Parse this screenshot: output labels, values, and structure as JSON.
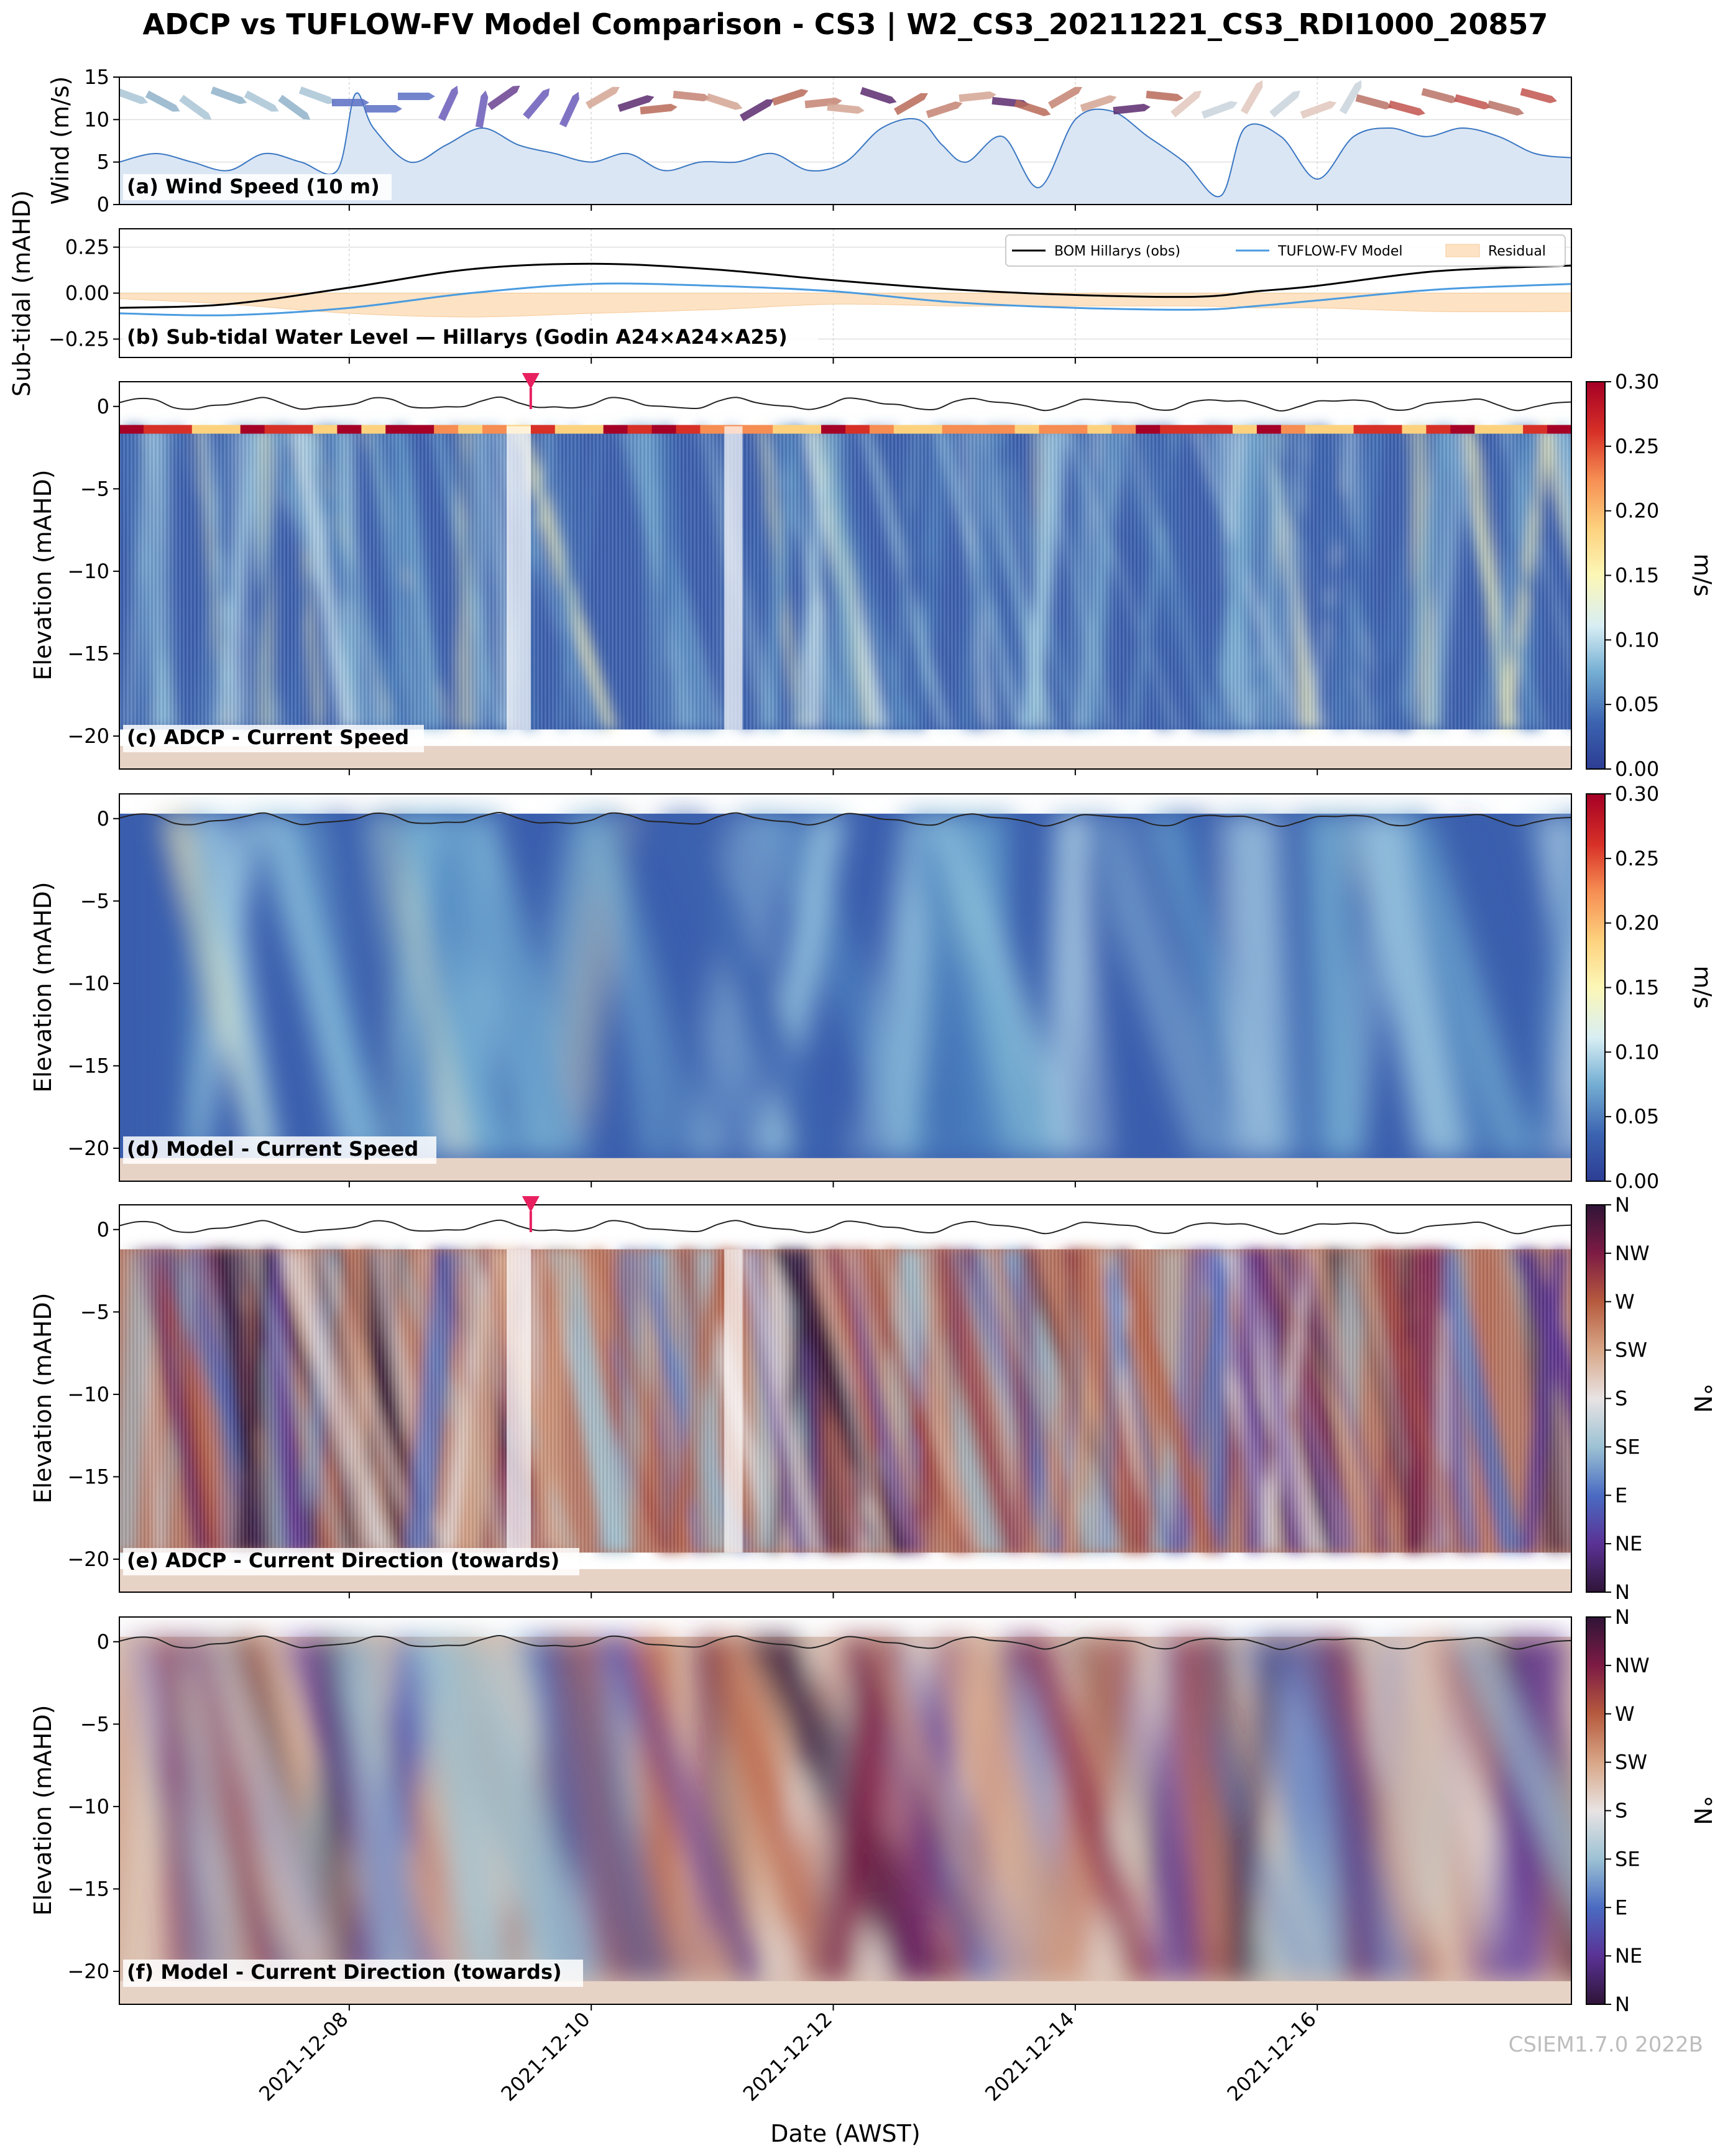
{
  "figure": {
    "title": "ADCP vs TUFLOW-FV Model Comparison - CS3 | W2_CS3_20211221_CS3_RDI1000_20857",
    "xlabel": "Date (AWST)",
    "watermark": "CSIEM1.7.0 2022B",
    "date_ticks": [
      "2021-12-08",
      "2021-12-10",
      "2021-12-12",
      "2021-12-14",
      "2021-12-16"
    ]
  },
  "colors": {
    "wind_fill": "#dbe6f4",
    "wind_line": "#3a77c2",
    "obs_line": "#000000",
    "model_line": "#4a9be0",
    "residual_fill": "#fde3c4",
    "seabed": "#e7d3c6",
    "marker": "#e8205f"
  },
  "chart_data": [
    {
      "type": "area",
      "panel_label": "(a) Wind Speed (10 m)",
      "ylabel": "Wind (m/s)",
      "ylim": [
        0,
        15
      ],
      "yticks": [
        "0",
        "5",
        "10",
        "15"
      ],
      "x_days": [
        6.1,
        6.4,
        6.7,
        7.0,
        7.3,
        7.6,
        7.9,
        8.05,
        8.2,
        8.5,
        8.8,
        9.1,
        9.4,
        9.7,
        10.0,
        10.3,
        10.6,
        10.9,
        11.2,
        11.5,
        11.8,
        12.1,
        12.4,
        12.7,
        12.9,
        13.1,
        13.4,
        13.7,
        14.0,
        14.3,
        14.6,
        14.9,
        15.2,
        15.4,
        15.7,
        16.0,
        16.3,
        16.6,
        16.9,
        17.2,
        17.5,
        17.8,
        18.1
      ],
      "values": [
        5,
        6,
        5,
        4,
        6,
        5,
        4,
        13,
        9,
        5,
        7,
        9,
        7,
        6,
        5,
        6,
        4,
        5,
        5,
        6,
        4,
        5,
        9,
        10,
        7,
        5,
        8,
        2,
        10,
        11,
        8,
        5,
        1,
        9,
        8,
        3,
        8,
        9,
        8,
        9,
        8,
        6,
        5.5
      ]
    },
    {
      "type": "line",
      "panel_label": "(b) Sub-tidal Water Level — Hillarys (Godin A24×A24×A25)",
      "ylabel": "Sub-tidal (mAHD)",
      "ylim": [
        -0.35,
        0.35
      ],
      "yticks": [
        "−0.25",
        "0.00",
        "0.25"
      ],
      "series": [
        {
          "name": "BOM Hillarys (obs)",
          "x_days": [
            6.1,
            7.0,
            8.0,
            9.0,
            10.0,
            11.0,
            12.0,
            13.0,
            14.0,
            15.0,
            15.5,
            16.0,
            17.0,
            18.1
          ],
          "values": [
            -0.08,
            -0.06,
            0.03,
            0.13,
            0.16,
            0.13,
            0.07,
            0.02,
            -0.01,
            -0.02,
            0.01,
            0.04,
            0.12,
            0.15
          ]
        },
        {
          "name": "TUFLOW-FV Model",
          "x_days": [
            6.1,
            7.0,
            8.0,
            9.0,
            10.0,
            11.0,
            12.0,
            13.0,
            14.0,
            15.0,
            15.5,
            16.0,
            17.0,
            18.1
          ],
          "values": [
            -0.11,
            -0.12,
            -0.08,
            0.0,
            0.05,
            0.04,
            0.01,
            -0.05,
            -0.08,
            -0.09,
            -0.07,
            -0.04,
            0.02,
            0.05
          ]
        },
        {
          "name": "Residual",
          "x_days": [
            6.1,
            7.0,
            8.0,
            9.0,
            10.0,
            11.0,
            12.0,
            13.0,
            14.0,
            15.0,
            15.5,
            16.0,
            17.0,
            18.1
          ],
          "values": [
            -0.03,
            -0.06,
            -0.11,
            -0.13,
            -0.11,
            -0.09,
            -0.06,
            -0.07,
            -0.07,
            -0.07,
            -0.08,
            -0.08,
            -0.1,
            -0.1
          ]
        }
      ]
    },
    {
      "type": "heatmap",
      "panel_label": "(c) ADCP - Current Speed",
      "ylabel": "Elevation (mAHD)",
      "ylim": [
        -22,
        1.5
      ],
      "yticks": [
        "−20",
        "−15",
        "−10",
        "−5",
        "0"
      ],
      "colorbar_label": "m/s",
      "colorbar_ticks": [
        "0.00",
        "0.05",
        "0.10",
        "0.15",
        "0.20",
        "0.25",
        "0.30"
      ],
      "marker_x_day": 9.5
    },
    {
      "type": "heatmap",
      "panel_label": "(d) Model - Current Speed",
      "ylabel": "Elevation (mAHD)",
      "ylim": [
        -22,
        1.5
      ],
      "yticks": [
        "−20",
        "−15",
        "−10",
        "−5",
        "0"
      ],
      "colorbar_label": "m/s",
      "colorbar_ticks": [
        "0.00",
        "0.05",
        "0.10",
        "0.15",
        "0.20",
        "0.25",
        "0.30"
      ]
    },
    {
      "type": "heatmap",
      "panel_label": "(e) ADCP - Current Direction (towards)",
      "ylabel": "Elevation (mAHD)",
      "ylim": [
        -22,
        1.5
      ],
      "yticks": [
        "−20",
        "−15",
        "−10",
        "−5",
        "0"
      ],
      "colorbar_label": "°N",
      "colorbar_ticks": [
        "N",
        "NE",
        "E",
        "SE",
        "S",
        "SW",
        "W",
        "NW",
        "N"
      ],
      "marker_x_day": 9.5
    },
    {
      "type": "heatmap",
      "panel_label": "(f) Model - Current Direction (towards)",
      "ylabel": "Elevation (mAHD)",
      "ylim": [
        -22,
        1.5
      ],
      "yticks": [
        "−20",
        "−15",
        "−10",
        "−5",
        "0"
      ],
      "colorbar_label": "°N",
      "colorbar_ticks": [
        "N",
        "NE",
        "E",
        "SE",
        "S",
        "SW",
        "W",
        "NW",
        "N"
      ]
    }
  ]
}
